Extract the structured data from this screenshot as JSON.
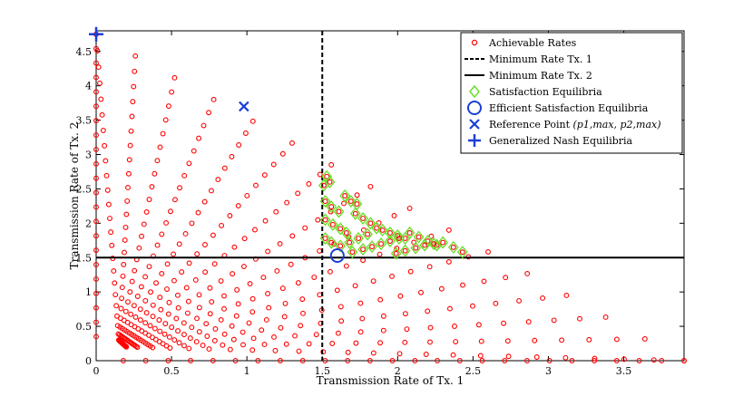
{
  "chart_data": {
    "type": "scatter",
    "xlabel": "Transmission Rate of Tx. 1",
    "ylabel": "Transmission Rate of Tx. 2",
    "xlim": [
      0,
      3.9
    ],
    "ylim": [
      0,
      4.8
    ],
    "xticks": [
      0,
      0.5,
      1,
      1.5,
      2,
      2.5,
      3,
      3.5
    ],
    "yticks": [
      0,
      0.5,
      1,
      1.5,
      2,
      2.5,
      3,
      3.5,
      4,
      4.5
    ],
    "xtick_labels": [
      "0",
      "0.5",
      "1",
      "1.5",
      "2",
      "2.5",
      "3",
      "3.5"
    ],
    "ytick_labels": [
      "0",
      "0.5",
      "1",
      "1.5",
      "2",
      "2.5",
      "3",
      "3.5",
      "4",
      "4.5"
    ],
    "legend_position": "top-right",
    "legend": [
      {
        "label": "Achievable Rates",
        "marker": "circle-small",
        "color": "#ff0000"
      },
      {
        "label": "Minimum Rate Tx. 1",
        "marker": "dashed-line",
        "color": "#000000"
      },
      {
        "label": "Minimum Rate Tx. 2",
        "marker": "solid-line",
        "color": "#000000"
      },
      {
        "label": "Satisfaction Equilibria",
        "marker": "diamond",
        "color": "#66dd22"
      },
      {
        "label": "Efficient Satisfaction Equilibria",
        "marker": "circle-large",
        "color": "#1a3fd6"
      },
      {
        "label": "Reference Point (p1,max, p2,max)",
        "label_main": "Reference Point",
        "label_math": "(p1,max, p2,max)",
        "marker": "x",
        "color": "#1a3fd6"
      },
      {
        "label": "Generalized Nash Equilibria",
        "marker": "plus",
        "color": "#1a3fd6"
      }
    ],
    "achievable_rates": {
      "description": "rays from bottom-left region toward the upper-left / lower-right boundary",
      "ray_angles_deg": [
        0,
        6,
        12,
        18,
        24,
        30,
        36,
        42,
        48,
        54,
        60,
        66,
        72,
        78,
        84,
        90
      ],
      "points_per_ray": 24,
      "corner_point": [
        0,
        4.75
      ],
      "far_point": [
        3.9,
        0
      ]
    },
    "min_rate_tx1": 1.5,
    "min_rate_tx2": 1.5,
    "satisfaction_equilibria_diagonals": [
      {
        "from": [
          1.5,
          2.67
        ],
        "to": [
          1.55,
          2.55
        ]
      },
      {
        "from": [
          1.5,
          2.5
        ],
        "to": [
          1.68,
          2.18
        ]
      },
      {
        "from": [
          1.5,
          2.2
        ],
        "to": [
          1.84,
          1.8
        ]
      },
      {
        "from": [
          1.5,
          1.9
        ],
        "to": [
          1.98,
          1.52
        ]
      },
      {
        "from": [
          1.5,
          1.7
        ],
        "to": [
          2.12,
          1.6
        ]
      },
      {
        "from": [
          1.6,
          1.6
        ],
        "to": [
          2.45,
          1.55
        ]
      }
    ],
    "satisfaction_equilibria": [
      [
        1.53,
        2.68
      ],
      [
        1.51,
        2.55
      ],
      [
        1.55,
        2.6
      ],
      [
        1.52,
        2.32
      ],
      [
        1.56,
        2.24
      ],
      [
        1.61,
        2.17
      ],
      [
        1.65,
        2.4
      ],
      [
        1.69,
        2.32
      ],
      [
        1.73,
        2.28
      ],
      [
        1.52,
        2.05
      ],
      [
        1.57,
        1.98
      ],
      [
        1.62,
        1.92
      ],
      [
        1.66,
        1.86
      ],
      [
        1.72,
        2.14
      ],
      [
        1.77,
        2.07
      ],
      [
        1.82,
        2.0
      ],
      [
        1.86,
        1.93
      ],
      [
        1.52,
        1.78
      ],
      [
        1.56,
        1.72
      ],
      [
        1.62,
        1.67
      ],
      [
        1.68,
        1.72
      ],
      [
        1.74,
        1.78
      ],
      [
        1.8,
        1.84
      ],
      [
        1.9,
        1.9
      ],
      [
        1.95,
        1.86
      ],
      [
        2.0,
        1.82
      ],
      [
        2.05,
        1.78
      ],
      [
        1.7,
        1.58
      ],
      [
        1.77,
        1.62
      ],
      [
        1.83,
        1.66
      ],
      [
        1.89,
        1.7
      ],
      [
        1.95,
        1.74
      ],
      [
        2.01,
        1.78
      ],
      [
        2.08,
        1.86
      ],
      [
        2.14,
        1.8
      ],
      [
        2.2,
        1.74
      ],
      [
        2.26,
        1.68
      ],
      [
        1.99,
        1.56
      ],
      [
        2.05,
        1.6
      ],
      [
        2.12,
        1.64
      ],
      [
        2.18,
        1.68
      ],
      [
        2.24,
        1.7
      ],
      [
        2.3,
        1.72
      ],
      [
        2.37,
        1.65
      ],
      [
        2.43,
        1.58
      ]
    ],
    "efficient_satisfaction_equilibrium": [
      1.6,
      1.53
    ],
    "reference_point": [
      0.98,
      3.7
    ],
    "generalized_nash_equilibrium": [
      0,
      4.75
    ]
  }
}
